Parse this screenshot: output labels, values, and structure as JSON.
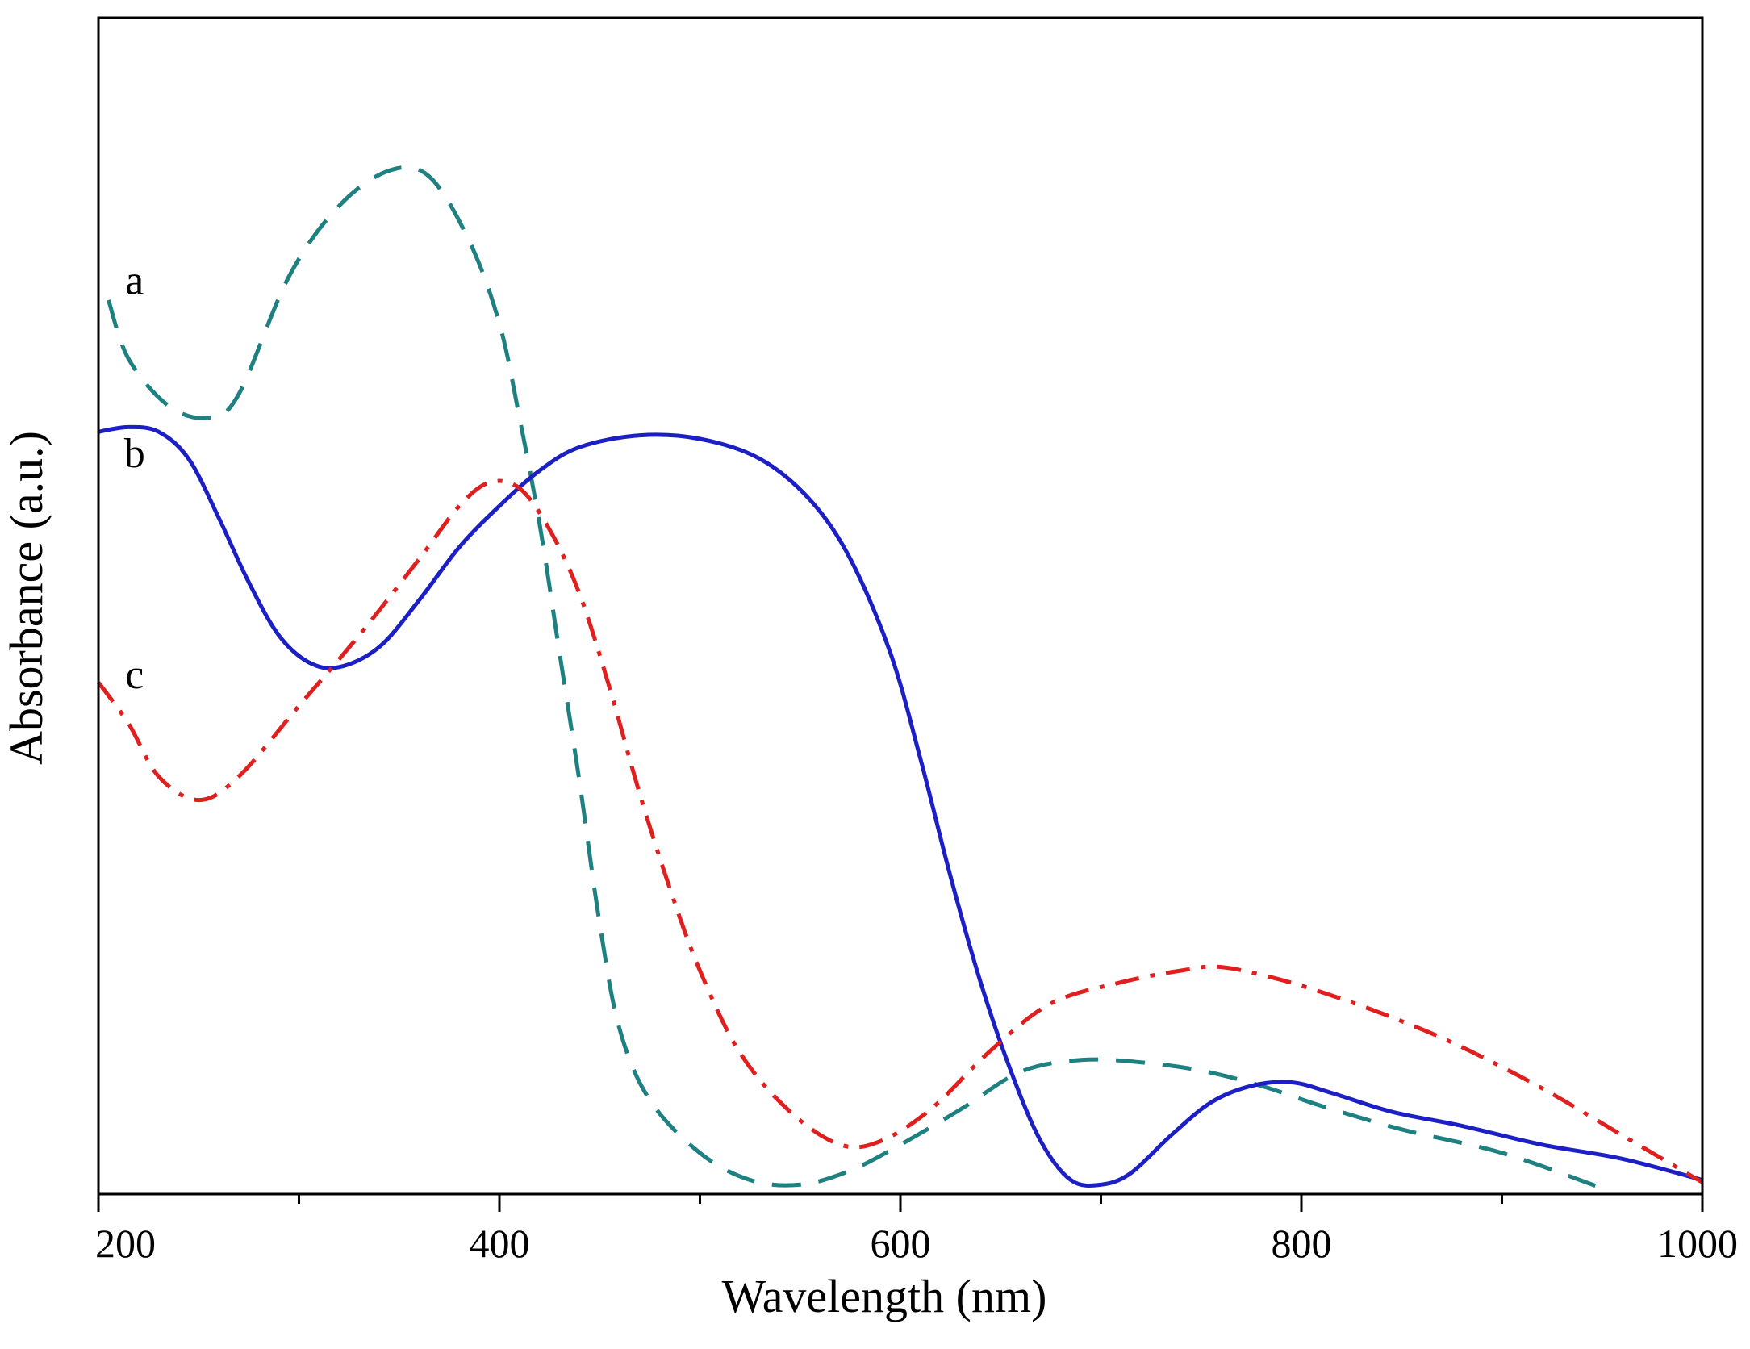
{
  "chart_data": {
    "type": "line",
    "title": "",
    "xlabel": "Wavelength (nm)",
    "ylabel": "Absorbance  (a.u.)",
    "xlim": [
      200,
      1000
    ],
    "ylim": [
      0,
      1.0
    ],
    "x_ticks": [
      200,
      400,
      600,
      800,
      1000
    ],
    "x_tick_labels": [
      "200",
      "400",
      "600",
      "800",
      "1000"
    ],
    "x_minor_ticks": [
      300,
      500,
      700,
      900
    ],
    "y_ticks_shown": false,
    "grid": false,
    "series": [
      {
        "name": "a",
        "label": "a",
        "color": "#1e8080",
        "dash": "dashed",
        "label_at": [
          218,
          0.765
        ],
        "points": [
          [
            205,
            0.76
          ],
          [
            215,
            0.71
          ],
          [
            235,
            0.67
          ],
          [
            255,
            0.66
          ],
          [
            270,
            0.68
          ],
          [
            295,
            0.78
          ],
          [
            320,
            0.84
          ],
          [
            345,
            0.87
          ],
          [
            365,
            0.865
          ],
          [
            385,
            0.81
          ],
          [
            400,
            0.74
          ],
          [
            410,
            0.66
          ],
          [
            420,
            0.57
          ],
          [
            430,
            0.46
          ],
          [
            440,
            0.35
          ],
          [
            450,
            0.23
          ],
          [
            460,
            0.14
          ],
          [
            475,
            0.08
          ],
          [
            500,
            0.035
          ],
          [
            525,
            0.012
          ],
          [
            550,
            0.008
          ],
          [
            575,
            0.02
          ],
          [
            600,
            0.042
          ],
          [
            630,
            0.072
          ],
          [
            660,
            0.104
          ],
          [
            690,
            0.114
          ],
          [
            720,
            0.112
          ],
          [
            750,
            0.105
          ],
          [
            780,
            0.092
          ],
          [
            810,
            0.075
          ],
          [
            850,
            0.055
          ],
          [
            900,
            0.035
          ],
          [
            950,
            0.005
          ]
        ]
      },
      {
        "name": "b",
        "label": "b",
        "color": "#1c1fc4",
        "dash": "solid",
        "label_at": [
          218,
          0.618
        ],
        "points": [
          [
            200,
            0.648
          ],
          [
            215,
            0.652
          ],
          [
            230,
            0.648
          ],
          [
            245,
            0.625
          ],
          [
            260,
            0.575
          ],
          [
            275,
            0.52
          ],
          [
            290,
            0.475
          ],
          [
            305,
            0.452
          ],
          [
            320,
            0.448
          ],
          [
            340,
            0.465
          ],
          [
            360,
            0.505
          ],
          [
            380,
            0.55
          ],
          [
            400,
            0.585
          ],
          [
            420,
            0.615
          ],
          [
            440,
            0.635
          ],
          [
            470,
            0.645
          ],
          [
            500,
            0.642
          ],
          [
            530,
            0.625
          ],
          [
            555,
            0.59
          ],
          [
            575,
            0.54
          ],
          [
            595,
            0.46
          ],
          [
            610,
            0.37
          ],
          [
            625,
            0.27
          ],
          [
            640,
            0.18
          ],
          [
            655,
            0.105
          ],
          [
            670,
            0.045
          ],
          [
            685,
            0.012
          ],
          [
            700,
            0.008
          ],
          [
            715,
            0.018
          ],
          [
            735,
            0.05
          ],
          [
            755,
            0.078
          ],
          [
            775,
            0.092
          ],
          [
            795,
            0.095
          ],
          [
            815,
            0.086
          ],
          [
            845,
            0.07
          ],
          [
            880,
            0.058
          ],
          [
            920,
            0.042
          ],
          [
            960,
            0.03
          ],
          [
            1000,
            0.012
          ]
        ]
      },
      {
        "name": "c",
        "label": "c",
        "color": "#e01f1f",
        "dash": "dashdot",
        "label_at": [
          218,
          0.43
        ],
        "points": [
          [
            200,
            0.435
          ],
          [
            215,
            0.4
          ],
          [
            230,
            0.355
          ],
          [
            250,
            0.335
          ],
          [
            270,
            0.355
          ],
          [
            300,
            0.415
          ],
          [
            330,
            0.475
          ],
          [
            360,
            0.54
          ],
          [
            380,
            0.585
          ],
          [
            395,
            0.605
          ],
          [
            410,
            0.6
          ],
          [
            425,
            0.565
          ],
          [
            440,
            0.51
          ],
          [
            455,
            0.43
          ],
          [
            470,
            0.34
          ],
          [
            485,
            0.26
          ],
          [
            500,
            0.19
          ],
          [
            520,
            0.12
          ],
          [
            545,
            0.07
          ],
          [
            570,
            0.042
          ],
          [
            590,
            0.045
          ],
          [
            615,
            0.072
          ],
          [
            645,
            0.122
          ],
          [
            675,
            0.162
          ],
          [
            710,
            0.18
          ],
          [
            740,
            0.19
          ],
          [
            760,
            0.193
          ],
          [
            790,
            0.182
          ],
          [
            820,
            0.166
          ],
          [
            850,
            0.147
          ],
          [
            880,
            0.125
          ],
          [
            920,
            0.09
          ],
          [
            960,
            0.05
          ],
          [
            1000,
            0.01
          ]
        ]
      }
    ]
  }
}
